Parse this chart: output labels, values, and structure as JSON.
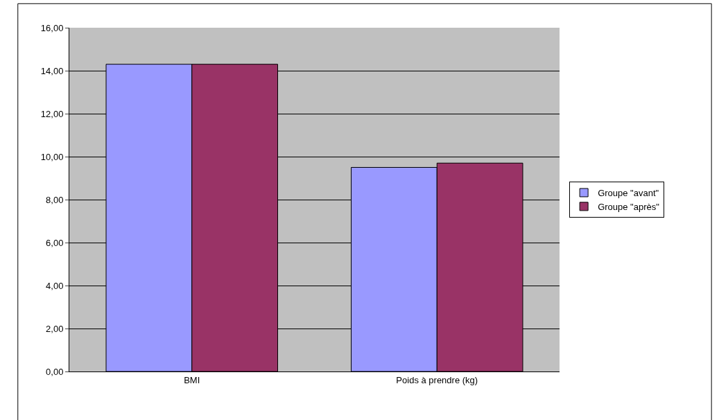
{
  "chart_data": {
    "type": "bar",
    "categories": [
      "BMI",
      "Poids à prendre (kg)"
    ],
    "series": [
      {
        "name": "Groupe \"avant\"",
        "color": "#9999ff",
        "values": [
          14.3,
          9.5
        ]
      },
      {
        "name": "Groupe \"après\"",
        "color": "#993366",
        "values": [
          14.3,
          9.7
        ]
      }
    ],
    "ylim": [
      0,
      16
    ],
    "yticks": [
      {
        "value": 0,
        "label": "0,00"
      },
      {
        "value": 2,
        "label": "2,00"
      },
      {
        "value": 4,
        "label": "4,00"
      },
      {
        "value": 6,
        "label": "6,00"
      },
      {
        "value": 8,
        "label": "8,00"
      },
      {
        "value": 10,
        "label": "10,00"
      },
      {
        "value": 12,
        "label": "12,00"
      },
      {
        "value": 14,
        "label": "14,00"
      },
      {
        "value": 16,
        "label": "16,00"
      }
    ],
    "grid": "y",
    "legend": "right"
  }
}
